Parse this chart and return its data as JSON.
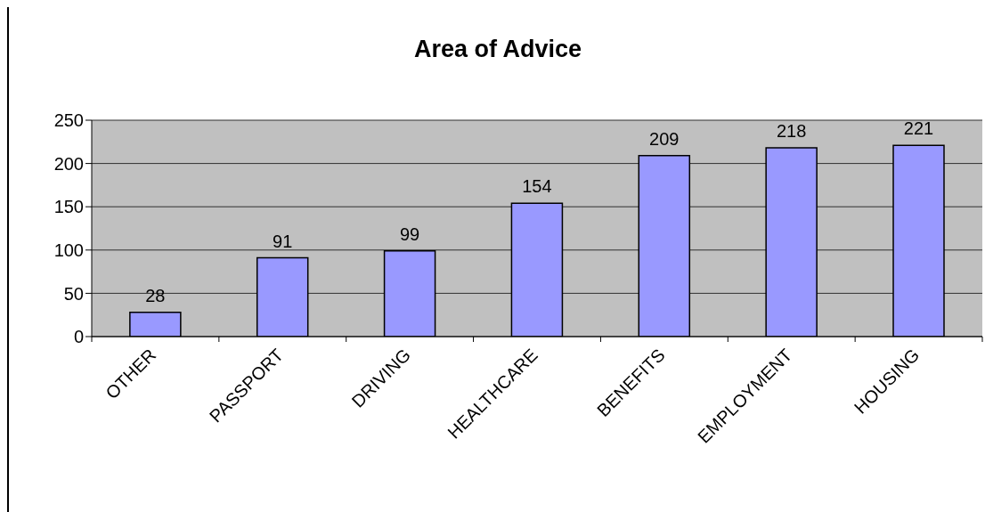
{
  "chart_data": {
    "type": "bar",
    "title": "Area of Advice",
    "categories": [
      "OTHER",
      "PASSPORT",
      "DRIVING",
      "HEALTHCARE",
      "BENEFITS",
      "EMPLOYMENT",
      "HOUSING"
    ],
    "values": [
      28,
      91,
      99,
      154,
      209,
      218,
      221
    ],
    "color": "#9999ff",
    "ylim": [
      0,
      250
    ],
    "yticks": [
      0,
      50,
      100,
      150,
      200,
      250
    ],
    "grid": "y",
    "data_labels": true
  }
}
